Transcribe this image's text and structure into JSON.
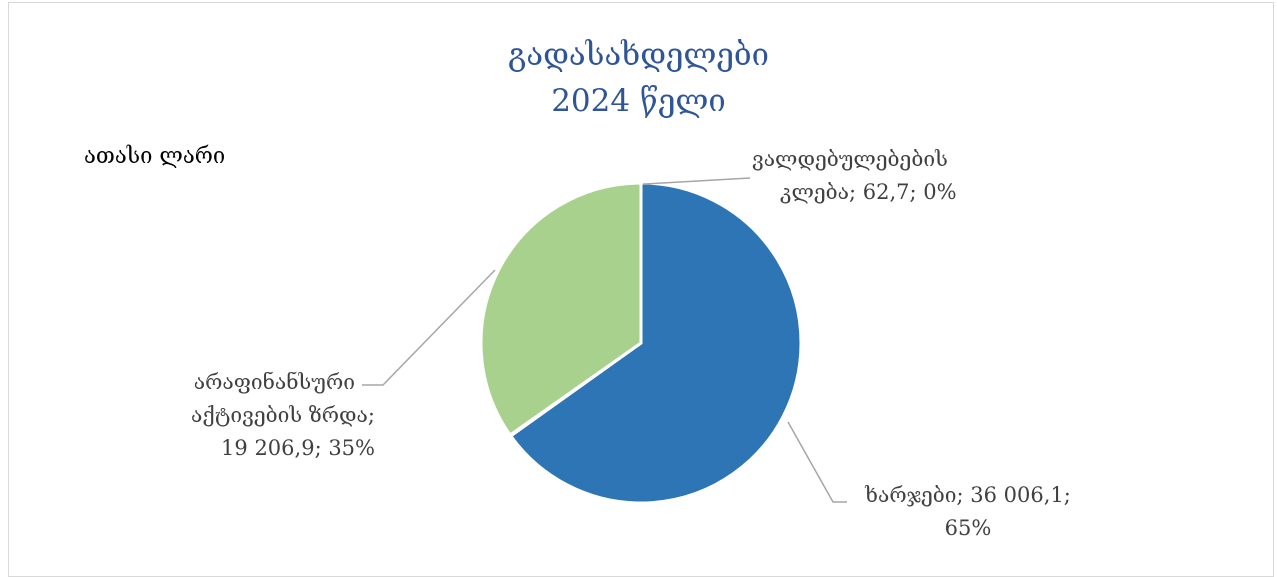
{
  "chart_data": {
    "type": "pie",
    "title": [
      "გადასახდელები",
      "2024 წელი"
    ],
    "unit_label": "ათასი ლარი",
    "slices": [
      {
        "name": "ხარჯები",
        "value": 36006.1,
        "percent": "65%",
        "value_label": "36 006,1",
        "color": "#2e75b6"
      },
      {
        "name": "ვალდებულებების კლება",
        "value": 62.7,
        "percent": "0%",
        "value_label": "62,7",
        "color": "#a9d18e"
      },
      {
        "name": "არაფინანსური აქტივების ზრდა",
        "value": 19206.9,
        "percent": "35%",
        "value_label": "19 206,9",
        "color": "#a9d18e"
      }
    ],
    "label_text": {
      "expenses": [
        "ხარჯები; 36 006,1;",
        "65%"
      ],
      "liabilities": [
        "ვალდებულებების",
        "კლება; 62,7; 0%"
      ],
      "assets": [
        "არაფინანსური",
        "აქტივების ზრდა;",
        "19 206,9; 35%"
      ]
    }
  }
}
